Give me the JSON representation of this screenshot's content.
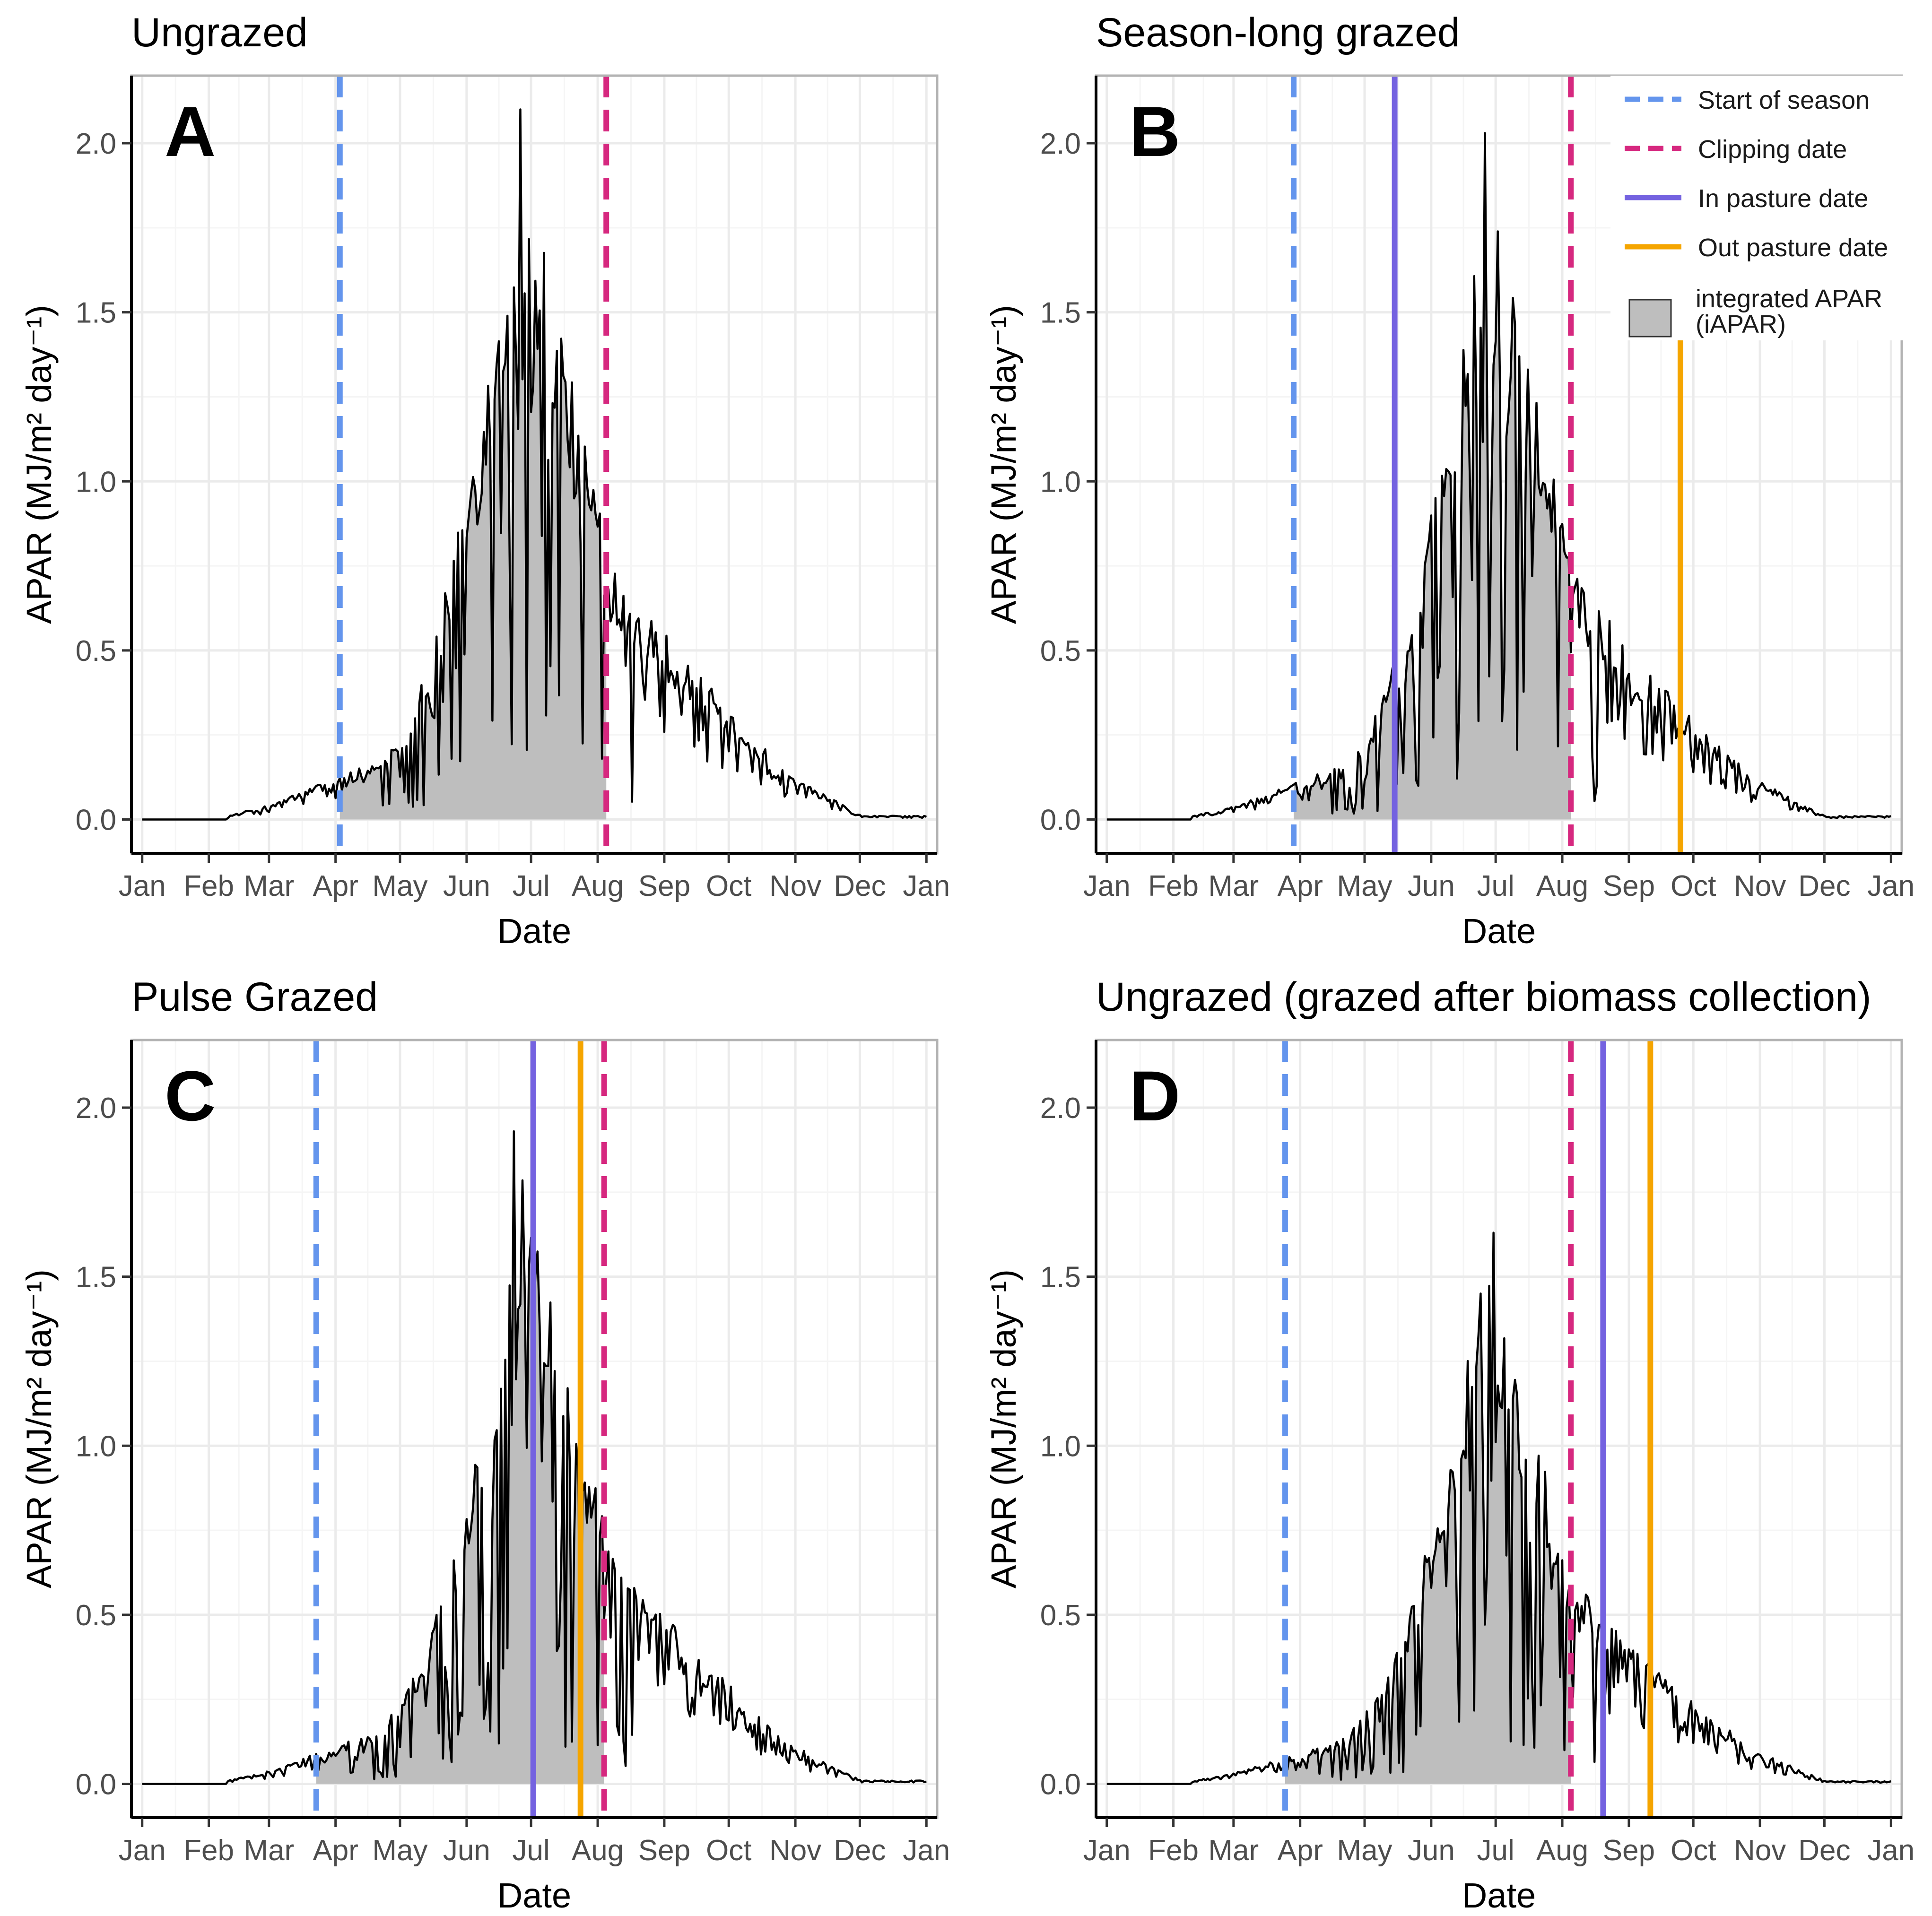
{
  "chart_data": [
    {
      "id": "A",
      "type": "area",
      "title": "Ungrazed",
      "letter": "A",
      "xlabel": "Date",
      "ylabel": "APAR (MJ/m² day⁻¹)",
      "x_ticks": [
        "Jan",
        "Feb",
        "Mar",
        "Apr",
        "May",
        "Jun",
        "Jul",
        "Aug",
        "Sep",
        "Oct",
        "Nov",
        "Dec",
        "Jan"
      ],
      "y_ticks": [
        "0.0",
        "0.5",
        "1.0",
        "1.5",
        "2.0"
      ],
      "ylim": [
        -0.1,
        2.2
      ],
      "xlim_doy": [
        -5,
        370
      ],
      "peak": {
        "doy": 176,
        "value": 2.1
      },
      "scale": 1.0,
      "start_of_season_doy": 92,
      "clipping_doy": 216,
      "in_pasture_doy": null,
      "out_pasture_doy": null,
      "iapar_window_doy": [
        92,
        216
      ]
    },
    {
      "id": "B",
      "type": "area",
      "title": "Season-long grazed",
      "letter": "B",
      "xlabel": "Date",
      "ylabel": "APAR (MJ/m² day⁻¹)",
      "x_ticks": [
        "Jan",
        "Feb",
        "Mar",
        "Apr",
        "May",
        "Jun",
        "Jul",
        "Aug",
        "Sep",
        "Oct",
        "Nov",
        "Dec",
        "Jan"
      ],
      "y_ticks": [
        "0.0",
        "0.5",
        "1.0",
        "1.5",
        "2.0"
      ],
      "ylim": [
        -0.1,
        2.2
      ],
      "xlim_doy": [
        -5,
        370
      ],
      "peak": {
        "doy": 176,
        "value": 2.03
      },
      "scale": 0.92,
      "start_of_season_doy": 87,
      "clipping_doy": 216,
      "in_pasture_doy": 134,
      "out_pasture_doy": 267,
      "iapar_window_doy": [
        87,
        216
      ]
    },
    {
      "id": "C",
      "type": "area",
      "title": "Pulse Grazed",
      "letter": "C",
      "xlabel": "Date",
      "ylabel": "APAR (MJ/m² day⁻¹)",
      "x_ticks": [
        "Jan",
        "Feb",
        "Mar",
        "Apr",
        "May",
        "Jun",
        "Jul",
        "Aug",
        "Sep",
        "Oct",
        "Nov",
        "Dec",
        "Jan"
      ],
      "y_ticks": [
        "0.0",
        "0.5",
        "1.0",
        "1.5",
        "2.0"
      ],
      "ylim": [
        -0.1,
        2.2
      ],
      "xlim_doy": [
        -5,
        370
      ],
      "peak": {
        "doy": 173,
        "value": 1.93
      },
      "scale": 0.9,
      "start_of_season_doy": 81,
      "clipping_doy": 215,
      "in_pasture_doy": 182,
      "out_pasture_doy": 204,
      "iapar_window_doy": [
        81,
        215
      ]
    },
    {
      "id": "D",
      "type": "area",
      "title": "Ungrazed (grazed after biomass collection)",
      "letter": "D",
      "xlabel": "Date",
      "ylabel": "APAR (MJ/m² day⁻¹)",
      "x_ticks": [
        "Jan",
        "Feb",
        "Mar",
        "Apr",
        "May",
        "Jun",
        "Jul",
        "Aug",
        "Sep",
        "Oct",
        "Nov",
        "Dec",
        "Jan"
      ],
      "y_ticks": [
        "0.0",
        "0.5",
        "1.0",
        "1.5",
        "2.0"
      ],
      "ylim": [
        -0.1,
        2.2
      ],
      "xlim_doy": [
        -5,
        370
      ],
      "peak": {
        "doy": 180,
        "value": 1.63
      },
      "scale": 0.76,
      "start_of_season_doy": 83,
      "clipping_doy": 216,
      "in_pasture_doy": 231,
      "out_pasture_doy": 253,
      "iapar_window_doy": [
        83,
        216
      ]
    }
  ],
  "legend": [
    {
      "label": "Start of season",
      "style": "dashed",
      "color": "#6495ed"
    },
    {
      "label": "Clipping date",
      "style": "dashed",
      "color": "#d6287f"
    },
    {
      "label": "In pasture date",
      "style": "solid",
      "color": "#7462e0"
    },
    {
      "label": "Out pasture date",
      "style": "solid",
      "color": "#f5a500"
    },
    {
      "label": "integrated APAR",
      "label2": "(iAPAR)",
      "style": "fill",
      "color": "#bebebe"
    }
  ],
  "colors": {
    "start_of_season": "#6495ed",
    "clipping": "#d6287f",
    "in_pasture": "#7462e0",
    "out_pasture": "#f5a500",
    "iapar_fill": "#bebebe",
    "apar_line": "#000000",
    "grid": "#ebebeb",
    "panel_border": "#b3b3b3"
  }
}
